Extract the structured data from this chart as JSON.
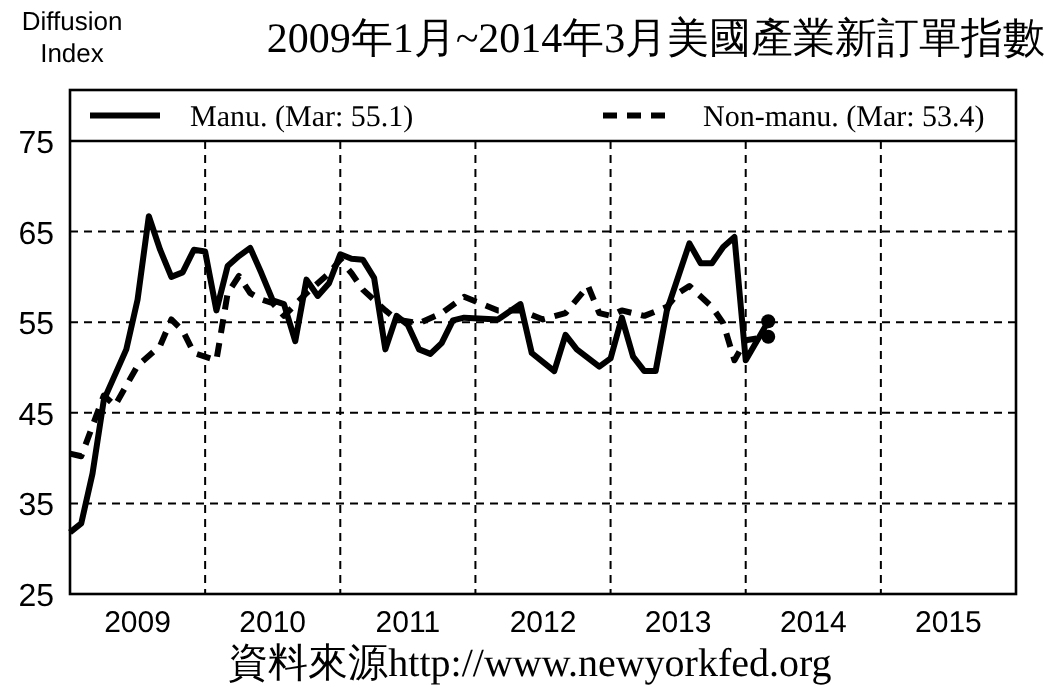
{
  "chart_data": {
    "type": "line",
    "title": "2009年1月~2014年3月美國產業新訂單指數",
    "ylabel": "Diffusion Index",
    "annotations": [
      "資料來源http://www.newyorkfed.org"
    ],
    "xlim": [
      "2009-01",
      "2016-01"
    ],
    "xticks": [
      {
        "value": "2010-01",
        "label": null
      },
      {
        "value": "2011-01",
        "label": null
      },
      {
        "value": "2012-01",
        "label": null
      },
      {
        "value": "2013-01",
        "label": null
      },
      {
        "value": "2014-01",
        "label": null
      },
      {
        "value": "2015-01",
        "label": null
      },
      {
        "value": "2009-07",
        "label": "2009"
      },
      {
        "value": "2010-07",
        "label": "2010"
      },
      {
        "value": "2011-07",
        "label": "2011"
      },
      {
        "value": "2012-07",
        "label": "2012"
      },
      {
        "value": "2013-07",
        "label": "2013"
      },
      {
        "value": "2014-07",
        "label": "2014"
      },
      {
        "value": "2015-07",
        "label": "2015"
      }
    ],
    "ylim": [
      25,
      75
    ],
    "yticks": [
      25,
      35,
      45,
      55,
      65,
      75
    ],
    "grid": true,
    "legend": "top",
    "series": [
      {
        "name": "Manu. (Mar: 55.1)",
        "color": "#000000",
        "line_style": "solid",
        "x": [
          "2009-01",
          "2009-02",
          "2009-03",
          "2009-04",
          "2009-06",
          "2009-07",
          "2009-08",
          "2009-09",
          "2009-10",
          "2009-11",
          "2009-12",
          "2010-01",
          "2010-02",
          "2010-03",
          "2010-04",
          "2010-05",
          "2010-06",
          "2010-07",
          "2010-08",
          "2010-09",
          "2010-10",
          "2010-11",
          "2010-12",
          "2011-01",
          "2011-02",
          "2011-03",
          "2011-04",
          "2011-05",
          "2011-06",
          "2011-07",
          "2011-08",
          "2011-09",
          "2011-10",
          "2011-11",
          "2011-12",
          "2012-03",
          "2012-05",
          "2012-06",
          "2012-08",
          "2012-09",
          "2012-10",
          "2012-12",
          "2013-01",
          "2013-02",
          "2013-03",
          "2013-04",
          "2013-05",
          "2013-06",
          "2013-08",
          "2013-09",
          "2013-10",
          "2013-11",
          "2013-12",
          "2014-01",
          "2014-03"
        ],
        "values": [
          31.8,
          32.8,
          38.3,
          46.4,
          52,
          57.5,
          66.7,
          63,
          60,
          60.5,
          63,
          62.8,
          56.3,
          61.2,
          62.3,
          63.2,
          60.4,
          57.4,
          57,
          52.9,
          59.7,
          57.9,
          59.3,
          62.5,
          62,
          61.9,
          59.9,
          52,
          55.7,
          54.7,
          52,
          51.5,
          52.7,
          55.2,
          55.5,
          55.3,
          57,
          51.6,
          49.6,
          53.6,
          52,
          50.1,
          51,
          55.5,
          51.2,
          49.6,
          49.6,
          56.3,
          63.7,
          61.5,
          61.5,
          63.3,
          64.4,
          50.8,
          55.1
        ]
      },
      {
        "name": "Non-manu. (Mar: 53.4)",
        "color": "#000000",
        "line_style": "dashed",
        "x": [
          "2009-01",
          "2009-02",
          "2009-04",
          "2009-05",
          "2009-07",
          "2009-09",
          "2009-10",
          "2009-11",
          "2009-12",
          "2010-02",
          "2010-03",
          "2010-04",
          "2010-05",
          "2010-06",
          "2010-07",
          "2010-08",
          "2010-10",
          "2010-12",
          "2011-01",
          "2011-02",
          "2011-03",
          "2011-05",
          "2011-06",
          "2011-08",
          "2011-10",
          "2011-12",
          "2012-03",
          "2012-05",
          "2012-07",
          "2012-09",
          "2012-11",
          "2012-12",
          "2013-01",
          "2013-02",
          "2013-04",
          "2013-06",
          "2013-07",
          "2013-08",
          "2013-10",
          "2013-11",
          "2013-12",
          "2014-01",
          "2014-03"
        ],
        "values": [
          40.5,
          40.2,
          46.9,
          45.8,
          50.2,
          52.4,
          55.3,
          54.1,
          51.6,
          50.8,
          58.2,
          60.1,
          58.2,
          57.5,
          57.1,
          55.7,
          58.2,
          60.4,
          61.9,
          60.4,
          58.6,
          56.3,
          55.3,
          54.9,
          56,
          57.8,
          56.3,
          56.3,
          55.3,
          56,
          59,
          56,
          55.7,
          56.3,
          55.7,
          56.7,
          58.2,
          59,
          56.7,
          54.9,
          50.8,
          53,
          53.4
        ]
      },
      {
        "type": "scatter",
        "marker": "circle",
        "color": "#000000",
        "x": [
          "2014-03"
        ],
        "values": [
          55.1
        ]
      },
      {
        "type": "scatter",
        "marker": "circle",
        "color": "#000000",
        "x": [
          "2014-03"
        ],
        "values": [
          53.4
        ]
      }
    ]
  }
}
